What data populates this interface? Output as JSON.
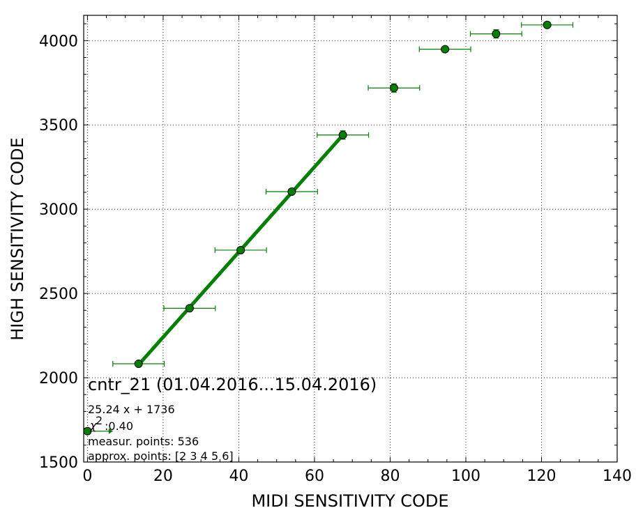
{
  "chart_data": {
    "type": "scatter",
    "xlabel": "MIDI SENSITIVITY CODE",
    "ylabel": "HIGH SENSITIVITY CODE",
    "xlim": [
      -1,
      140
    ],
    "ylim": [
      1500,
      4150
    ],
    "xticks": [
      0,
      20,
      40,
      60,
      80,
      100,
      120,
      140
    ],
    "yticks": [
      1500,
      2000,
      2500,
      3000,
      3500,
      4000
    ],
    "grid": true,
    "colors": {
      "series": "#008000",
      "marker_edge": "#000000"
    },
    "series": [
      {
        "points": [
          {
            "x": 0,
            "y": 1683,
            "xerr": 6.7,
            "yerr": 0,
            "xerr_side": "plus"
          },
          {
            "x": 13.5,
            "y": 2083,
            "xerr": 6.8,
            "yerr": 8
          },
          {
            "x": 27,
            "y": 2412,
            "xerr": 6.8,
            "yerr": 8
          },
          {
            "x": 40.5,
            "y": 2757,
            "xerr": 6.8,
            "yerr": 8
          },
          {
            "x": 54,
            "y": 3104,
            "xerr": 6.8,
            "yerr": 8
          },
          {
            "x": 67.5,
            "y": 3440,
            "xerr": 6.8,
            "yerr": 25
          },
          {
            "x": 81,
            "y": 3719,
            "xerr": 6.8,
            "yerr": 25
          },
          {
            "x": 94.5,
            "y": 3949,
            "xerr": 6.8,
            "yerr": 12
          },
          {
            "x": 108,
            "y": 4040,
            "xerr": 6.8,
            "yerr": 25
          },
          {
            "x": 121.5,
            "y": 4093,
            "xerr": 6.8,
            "yerr": 8
          }
        ]
      }
    ],
    "fit_line": {
      "slope": 25.24,
      "intercept": 1736,
      "x_range": [
        13.5,
        67.5
      ]
    },
    "annotations": {
      "title": "cntr_21 (01.04.2016...15.04.2016)",
      "equation": "25.24 x + 1736",
      "chi2": ":0.40",
      "chi2_symbol": "χ",
      "chi2_exp": "2",
      "measur_points": "measur. points: 536",
      "approx_points": "approx. points: [2 3 4 5 6]"
    }
  }
}
